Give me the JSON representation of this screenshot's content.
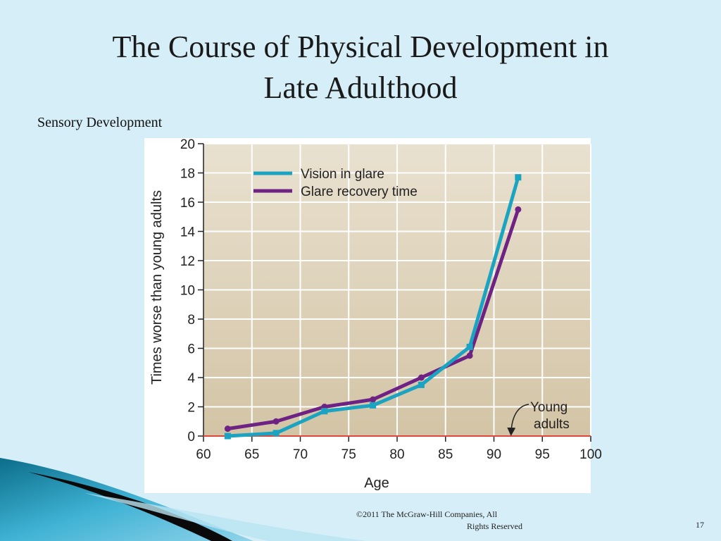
{
  "slide": {
    "title_line1": "The Course of Physical Development in",
    "title_line2": "Late Adulthood",
    "subtitle": "Sensory Development",
    "copyright_line1": "©2011 The McGraw-Hill Companies, All",
    "copyright_line2": "Rights Reserved",
    "page_number": "17"
  },
  "chart_data": {
    "type": "line",
    "xlabel": "Age",
    "ylabel": "Times worse than young adults",
    "xlim": [
      60,
      100
    ],
    "ylim": [
      0,
      20
    ],
    "xticks": [
      60,
      65,
      70,
      75,
      80,
      85,
      90,
      95,
      100
    ],
    "yticks": [
      0,
      2,
      4,
      6,
      8,
      10,
      12,
      14,
      16,
      18,
      20
    ],
    "grid": true,
    "legend_position": "top-left",
    "background_gradient": [
      "#e9e1d0",
      "#d3c4a5"
    ],
    "series": [
      {
        "name": "Vision in glare",
        "color": "#1ba3c2",
        "marker": "square",
        "x": [
          62.5,
          67.5,
          72.5,
          77.5,
          82.5,
          87.5,
          92.5
        ],
        "y": [
          0.0,
          0.2,
          1.7,
          2.1,
          3.5,
          6.1,
          17.7
        ]
      },
      {
        "name": "Glare recovery time",
        "color": "#6e2283",
        "marker": "circle",
        "x": [
          62.5,
          67.5,
          72.5,
          77.5,
          82.5,
          87.5,
          92.5
        ],
        "y": [
          0.5,
          1.0,
          2.0,
          2.5,
          4.0,
          5.5,
          15.5
        ]
      }
    ],
    "reference_line": {
      "y": 0,
      "color": "#e0473c"
    },
    "annotation": {
      "line1": "Young",
      "line2": "adults",
      "arrow_to": [
        92.5,
        0
      ]
    }
  }
}
